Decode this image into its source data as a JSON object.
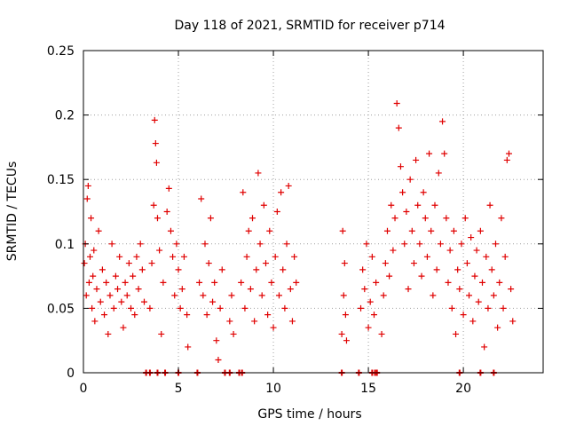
{
  "chart_data": {
    "type": "scatter",
    "title": "Day 118 of 2021, SRMTID for receiver p714",
    "xlabel": "GPS time / hours",
    "ylabel": "SRMTID / TECUs",
    "xlim": [
      0,
      24.2
    ],
    "ylim": [
      0,
      0.25
    ],
    "x_ticks": [
      0,
      5,
      10,
      15,
      20
    ],
    "x_tick_labels": [
      "0",
      "5",
      "10",
      "15",
      "20"
    ],
    "y_ticks": [
      0,
      0.05,
      0.1,
      0.15,
      0.2,
      0.25
    ],
    "y_tick_labels": [
      "0",
      "0.05",
      "0.1",
      "0.15",
      "0.2",
      "0.25"
    ],
    "grid": true,
    "marker": "+",
    "color": "#e00000",
    "series": [
      {
        "name": "SRMTID",
        "points": [
          [
            0.05,
            0.085
          ],
          [
            0.1,
            0.1
          ],
          [
            0.15,
            0.06
          ],
          [
            0.2,
            0.135
          ],
          [
            0.25,
            0.145
          ],
          [
            0.3,
            0.07
          ],
          [
            0.35,
            0.09
          ],
          [
            0.4,
            0.12
          ],
          [
            0.45,
            0.05
          ],
          [
            0.5,
            0.075
          ],
          [
            0.55,
            0.095
          ],
          [
            0.6,
            0.04
          ],
          [
            0.7,
            0.065
          ],
          [
            0.8,
            0.11
          ],
          [
            0.9,
            0.055
          ],
          [
            1.0,
            0.08
          ],
          [
            1.1,
            0.045
          ],
          [
            1.2,
            0.07
          ],
          [
            1.3,
            0.03
          ],
          [
            1.4,
            0.06
          ],
          [
            1.5,
            0.1
          ],
          [
            1.6,
            0.05
          ],
          [
            1.7,
            0.075
          ],
          [
            1.8,
            0.065
          ],
          [
            1.9,
            0.09
          ],
          [
            2.0,
            0.055
          ],
          [
            2.1,
            0.035
          ],
          [
            2.2,
            0.07
          ],
          [
            2.3,
            0.06
          ],
          [
            2.4,
            0.085
          ],
          [
            2.5,
            0.05
          ],
          [
            2.6,
            0.075
          ],
          [
            2.7,
            0.045
          ],
          [
            2.8,
            0.09
          ],
          [
            2.9,
            0.065
          ],
          [
            3.0,
            0.1
          ],
          [
            3.1,
            0.08
          ],
          [
            3.2,
            0.055
          ],
          [
            3.5,
            0.05
          ],
          [
            3.6,
            0.085
          ],
          [
            3.7,
            0.13
          ],
          [
            3.75,
            0.196
          ],
          [
            3.8,
            0.178
          ],
          [
            3.85,
            0.163
          ],
          [
            3.9,
            0.12
          ],
          [
            4.0,
            0.095
          ],
          [
            4.1,
            0.03
          ],
          [
            4.2,
            0.07
          ],
          [
            4.4,
            0.125
          ],
          [
            4.5,
            0.143
          ],
          [
            4.6,
            0.11
          ],
          [
            4.7,
            0.09
          ],
          [
            4.8,
            0.06
          ],
          [
            4.9,
            0.1
          ],
          [
            5.0,
            0.08
          ],
          [
            5.1,
            0.05
          ],
          [
            5.2,
            0.065
          ],
          [
            5.3,
            0.09
          ],
          [
            5.45,
            0.045
          ],
          [
            5.5,
            0.02
          ],
          [
            6.1,
            0.07
          ],
          [
            6.2,
            0.135
          ],
          [
            6.3,
            0.06
          ],
          [
            6.4,
            0.1
          ],
          [
            6.5,
            0.045
          ],
          [
            6.6,
            0.085
          ],
          [
            6.7,
            0.12
          ],
          [
            6.8,
            0.055
          ],
          [
            6.9,
            0.07
          ],
          [
            7.0,
            0.025
          ],
          [
            7.1,
            0.01
          ],
          [
            7.2,
            0.05
          ],
          [
            7.3,
            0.08
          ],
          [
            7.7,
            0.04
          ],
          [
            7.8,
            0.06
          ],
          [
            7.9,
            0.03
          ],
          [
            8.3,
            0.07
          ],
          [
            8.4,
            0.14
          ],
          [
            8.5,
            0.05
          ],
          [
            8.6,
            0.09
          ],
          [
            8.7,
            0.11
          ],
          [
            8.8,
            0.065
          ],
          [
            8.9,
            0.12
          ],
          [
            9.0,
            0.04
          ],
          [
            9.1,
            0.08
          ],
          [
            9.2,
            0.155
          ],
          [
            9.3,
            0.1
          ],
          [
            9.4,
            0.06
          ],
          [
            9.5,
            0.13
          ],
          [
            9.6,
            0.085
          ],
          [
            9.7,
            0.045
          ],
          [
            9.8,
            0.11
          ],
          [
            9.9,
            0.07
          ],
          [
            10.0,
            0.035
          ],
          [
            10.1,
            0.09
          ],
          [
            10.2,
            0.125
          ],
          [
            10.3,
            0.06
          ],
          [
            10.4,
            0.14
          ],
          [
            10.5,
            0.08
          ],
          [
            10.6,
            0.05
          ],
          [
            10.7,
            0.1
          ],
          [
            10.8,
            0.145
          ],
          [
            10.9,
            0.065
          ],
          [
            11.0,
            0.04
          ],
          [
            11.1,
            0.09
          ],
          [
            11.2,
            0.07
          ],
          [
            13.6,
            0.03
          ],
          [
            13.65,
            0.11
          ],
          [
            13.7,
            0.06
          ],
          [
            13.75,
            0.085
          ],
          [
            13.8,
            0.045
          ],
          [
            13.85,
            0.025
          ],
          [
            14.6,
            0.05
          ],
          [
            14.7,
            0.08
          ],
          [
            14.8,
            0.065
          ],
          [
            14.9,
            0.1
          ],
          [
            15.0,
            0.035
          ],
          [
            15.1,
            0.055
          ],
          [
            15.2,
            0.09
          ],
          [
            15.3,
            0.045
          ],
          [
            15.4,
            0.07
          ],
          [
            15.7,
            0.03
          ],
          [
            15.8,
            0.06
          ],
          [
            15.9,
            0.085
          ],
          [
            16.0,
            0.11
          ],
          [
            16.1,
            0.075
          ],
          [
            16.2,
            0.13
          ],
          [
            16.3,
            0.095
          ],
          [
            16.4,
            0.12
          ],
          [
            16.5,
            0.209
          ],
          [
            16.6,
            0.19
          ],
          [
            16.7,
            0.16
          ],
          [
            16.8,
            0.14
          ],
          [
            16.9,
            0.1
          ],
          [
            17.0,
            0.125
          ],
          [
            17.1,
            0.065
          ],
          [
            17.2,
            0.15
          ],
          [
            17.3,
            0.11
          ],
          [
            17.4,
            0.085
          ],
          [
            17.5,
            0.165
          ],
          [
            17.6,
            0.13
          ],
          [
            17.7,
            0.1
          ],
          [
            17.8,
            0.075
          ],
          [
            17.9,
            0.14
          ],
          [
            18.0,
            0.12
          ],
          [
            18.1,
            0.09
          ],
          [
            18.2,
            0.17
          ],
          [
            18.3,
            0.11
          ],
          [
            18.4,
            0.06
          ],
          [
            18.5,
            0.13
          ],
          [
            18.6,
            0.08
          ],
          [
            18.7,
            0.155
          ],
          [
            18.8,
            0.1
          ],
          [
            18.9,
            0.195
          ],
          [
            19.0,
            0.17
          ],
          [
            19.1,
            0.12
          ],
          [
            19.2,
            0.07
          ],
          [
            19.3,
            0.095
          ],
          [
            19.4,
            0.05
          ],
          [
            19.5,
            0.11
          ],
          [
            19.6,
            0.03
          ],
          [
            19.7,
            0.08
          ],
          [
            19.8,
            0.065
          ],
          [
            19.9,
            0.1
          ],
          [
            20.0,
            0.045
          ],
          [
            20.1,
            0.12
          ],
          [
            20.2,
            0.085
          ],
          [
            20.3,
            0.06
          ],
          [
            20.4,
            0.105
          ],
          [
            20.5,
            0.04
          ],
          [
            20.6,
            0.075
          ],
          [
            20.7,
            0.095
          ],
          [
            20.8,
            0.055
          ],
          [
            20.9,
            0.11
          ],
          [
            21.0,
            0.07
          ],
          [
            21.1,
            0.02
          ],
          [
            21.2,
            0.09
          ],
          [
            21.3,
            0.05
          ],
          [
            21.4,
            0.13
          ],
          [
            21.5,
            0.08
          ],
          [
            21.6,
            0.06
          ],
          [
            21.7,
            0.1
          ],
          [
            21.8,
            0.035
          ],
          [
            21.9,
            0.07
          ],
          [
            22.0,
            0.12
          ],
          [
            22.1,
            0.05
          ],
          [
            22.2,
            0.09
          ],
          [
            22.3,
            0.165
          ],
          [
            22.4,
            0.17
          ],
          [
            22.5,
            0.065
          ],
          [
            22.6,
            0.04
          ]
        ],
        "zero_points": [
          3.3,
          3.5,
          3.9,
          4.3,
          5.0,
          6.0,
          7.45,
          7.7,
          8.2,
          8.35,
          13.6,
          14.5,
          15.2,
          15.35,
          15.45,
          19.8,
          20.9,
          21.6
        ]
      }
    ]
  }
}
